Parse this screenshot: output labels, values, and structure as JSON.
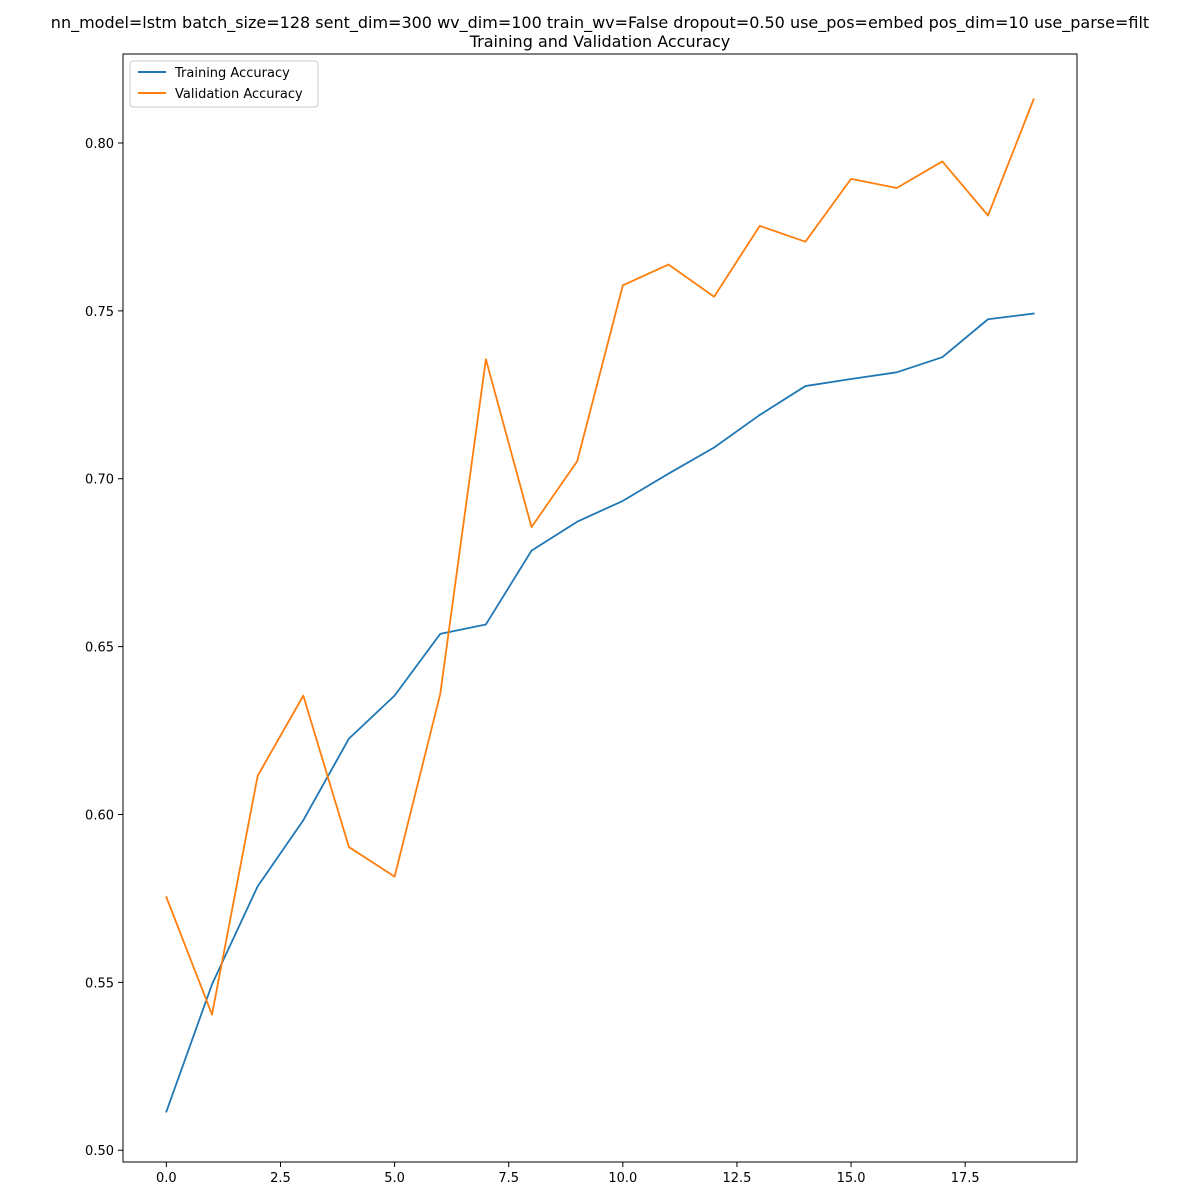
{
  "chart_data": {
    "type": "line",
    "title": "nn_model=lstm batch_size=128 sent_dim=300 wv_dim=100 train_wv=False dropout=0.50 use_pos=embed pos_dim=10 use_parse=filt",
    "subtitle": "Training and Validation Accuracy",
    "xlabel": "",
    "ylabel": "",
    "xlim": [
      -0.95,
      19.95
    ],
    "ylim": [
      0.4965,
      0.8265
    ],
    "x_ticks": [
      0.0,
      2.5,
      5.0,
      7.5,
      10.0,
      12.5,
      15.0,
      17.5
    ],
    "x_tick_labels": [
      "0.0",
      "2.5",
      "5.0",
      "7.5",
      "10.0",
      "12.5",
      "15.0",
      "17.5"
    ],
    "y_ticks": [
      0.5,
      0.55,
      0.6,
      0.65,
      0.7,
      0.75,
      0.8
    ],
    "y_tick_labels": [
      "0.50",
      "0.55",
      "0.60",
      "0.65",
      "0.70",
      "0.75",
      "0.80"
    ],
    "grid": false,
    "legend_position": "upper-left",
    "x": [
      0,
      1,
      2,
      3,
      4,
      5,
      6,
      7,
      8,
      9,
      10,
      11,
      12,
      13,
      14,
      15,
      16,
      17,
      18,
      19
    ],
    "series": [
      {
        "name": "Training Accuracy",
        "color": "#1f77b4",
        "values": [
          0.5115,
          0.5494,
          0.5786,
          0.5983,
          0.6226,
          0.6354,
          0.6538,
          0.6566,
          0.6786,
          0.6872,
          0.6934,
          0.7015,
          0.7093,
          0.719,
          0.7276,
          0.7297,
          0.7317,
          0.7362,
          0.7475,
          0.7492
        ]
      },
      {
        "name": "Validation Accuracy",
        "color": "#ff7f0e",
        "values": [
          0.5754,
          0.5404,
          0.6115,
          0.6354,
          0.5903,
          0.5815,
          0.6359,
          0.7356,
          0.6856,
          0.7052,
          0.7576,
          0.7638,
          0.7542,
          0.7753,
          0.7706,
          0.7893,
          0.7866,
          0.7945,
          0.7784,
          0.813
        ]
      }
    ]
  }
}
